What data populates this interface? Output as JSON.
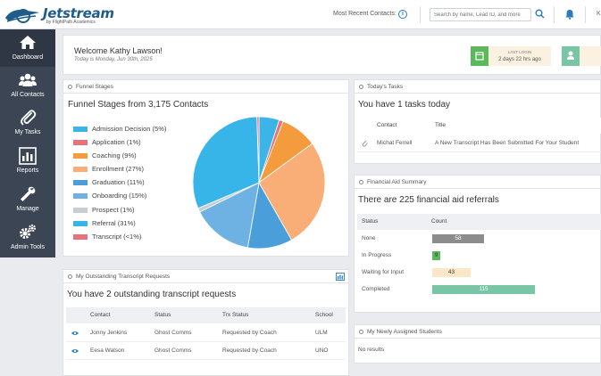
{
  "app": {
    "name": "Jetstream",
    "tagline": "by FlightPath Academics"
  },
  "header": {
    "recent_contacts_label": "Most Recent Contacts:",
    "search_placeholder": "Search by name, Lead ID, and more",
    "user_initial": "K"
  },
  "sidebar": {
    "items": [
      {
        "label": "Dashboard",
        "icon": "home-icon"
      },
      {
        "label": "All Contacts",
        "icon": "users-icon"
      },
      {
        "label": "My Tasks",
        "icon": "paperclip-icon"
      },
      {
        "label": "Reports",
        "icon": "bar-chart-icon"
      },
      {
        "label": "Manage",
        "icon": "wrench-icon"
      },
      {
        "label": "Admin Tools",
        "icon": "gears-icon"
      }
    ]
  },
  "welcome": {
    "title": "Welcome Kathy Lawson!",
    "date": "Today is Monday, Jun 30th, 2025",
    "last_login_label": "LAST LOGIN",
    "last_login_value": "2 days 22 hrs ago"
  },
  "funnel": {
    "panel_title": "Funnel Stages",
    "heading": "Funnel Stages from 3,175 Contacts"
  },
  "chart_data": {
    "type": "pie",
    "title": "Funnel Stages from 3,175 Contacts",
    "legend_position": "left",
    "slices": [
      {
        "label": "Admission Decision (5%)",
        "name": "Admission Decision",
        "value": 5,
        "color": "#3db4e8"
      },
      {
        "label": "Application (1%)",
        "name": "Application",
        "value": 1,
        "color": "#e8727a"
      },
      {
        "label": "Coaching (9%)",
        "name": "Coaching",
        "value": 9,
        "color": "#f39b3d"
      },
      {
        "label": "Enrollment (27%)",
        "name": "Enrollment",
        "value": 27,
        "color": "#f9ae78"
      },
      {
        "label": "Graduation (11%)",
        "name": "Graduation",
        "value": 11,
        "color": "#4a9fdb"
      },
      {
        "label": "Onboarding (15%)",
        "name": "Onboarding",
        "value": 15,
        "color": "#6db2e2"
      },
      {
        "label": "Prospect (1%)",
        "name": "Prospect",
        "value": 1,
        "color": "#c7ced6"
      },
      {
        "label": "Referral (31%)",
        "name": "Referral",
        "value": 31,
        "color": "#37b5e9"
      },
      {
        "label": "Transcript (<1%)",
        "name": "Transcript",
        "value": 0.5,
        "color": "#e8727a"
      }
    ]
  },
  "tasks": {
    "panel_title": "Today's Tasks",
    "heading": "You have 1 tasks today",
    "columns": [
      "Contact",
      "Title"
    ],
    "rows": [
      {
        "contact": "Michat Ferrell",
        "title": "A New Transcript Has Been Submitted For Your Student"
      }
    ]
  },
  "financial": {
    "panel_title": "Financial Aid Summary",
    "heading": "There are 225 financial aid referrals",
    "columns": [
      "Status",
      "Count"
    ],
    "rows": [
      {
        "status": "None",
        "count": "58",
        "count_value": 58,
        "color": "#8c8c8c",
        "text_color": "#ffffff"
      },
      {
        "status": "In Progress",
        "count": "9",
        "count_value": 9,
        "color": "#5cb85c",
        "text_color": "#333333"
      },
      {
        "status": "Waiting for Input",
        "count": "43",
        "count_value": 43,
        "color": "#fbe6c8",
        "text_color": "#333333"
      },
      {
        "status": "Completed",
        "count": "115",
        "count_value": 115,
        "color": "#79c6a6",
        "text_color": "#ffffff"
      }
    ]
  },
  "transcripts": {
    "panel_title": "My Outstanding Transcript Requests",
    "heading": "You have 2 outstanding transcript requests",
    "columns": [
      "Contact",
      "Status",
      "Trx Status",
      "School"
    ],
    "rows": [
      {
        "contact": "Jonny Jenkins",
        "status": "Ghost Comms",
        "trx_status": "Requested by Coach",
        "school": "ULM"
      },
      {
        "contact": "Eesa Watson",
        "status": "Ghost Comms",
        "trx_status": "Requested by Coach",
        "school": "UNO"
      }
    ]
  },
  "assigned": {
    "panel_title": "My Newly Assigned Students",
    "empty_text": "No results"
  },
  "colors": {
    "sidebar_bg": "#3c4553",
    "brand": "#1f5c8a",
    "accent_blue": "#2a7bbf"
  }
}
